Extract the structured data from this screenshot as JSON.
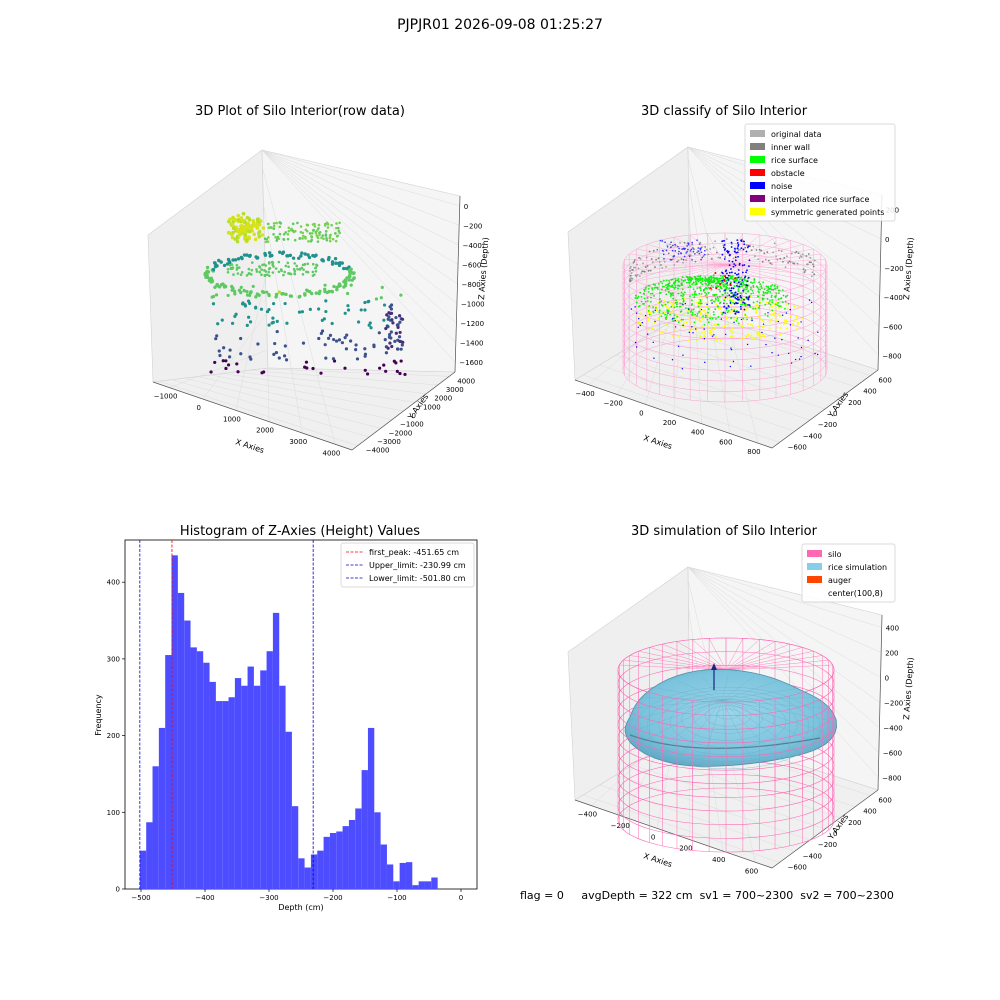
{
  "suptitle": "PJPJR01 2026-09-08 01:25:27",
  "status_line": {
    "flag": "flag = 0",
    "avg_depth": "avgDepth = 322 cm",
    "sv1": "sv1 = 700~2300",
    "sv2": "sv2 = 700~2300"
  },
  "colors": {
    "histogram_bar": "#4d4dff",
    "peak_line": "#ff0000",
    "limit_line": "#0000cc",
    "silo": "#ff69b4",
    "rice_simulation": "#87ceeb",
    "auger": "#ff4500",
    "original_data": "#b0b0b0",
    "inner_wall": "#808080",
    "rice_surface": "#00ff00",
    "obstacle": "#ff0000",
    "noise": "#0000ff",
    "interpolated_rice_surface": "#800080",
    "symmetric_generated_points": "#ffff00"
  },
  "chart_data": [
    {
      "type": "scatter3d",
      "title": "3D Plot of Silo Interior(row data)",
      "xlabel": "X Axies",
      "ylabel": "Y Axies",
      "zlabel": "Z Axies (Depth)",
      "xticks": [
        "−1000",
        "0",
        "1000",
        "2000",
        "3000",
        "4000"
      ],
      "yticks": [
        "−4000",
        "−3000",
        "−2000",
        "−1000",
        "0",
        "1000",
        "2000",
        "3000",
        "4000"
      ],
      "zticks": [
        "0",
        "−200",
        "−400",
        "−600",
        "−800",
        "−1000",
        "−1200",
        "−1400",
        "−1600"
      ],
      "xlim": [
        -1000,
        4500
      ],
      "ylim": [
        -4000,
        4000
      ],
      "zlim": [
        -1700,
        0
      ]
    },
    {
      "type": "scatter3d",
      "title": "3D classify of Silo Interior",
      "xlabel": "X Axies",
      "ylabel": "Y Axies",
      "zlabel": "Z Axies (Depth)",
      "xticks": [
        "−400",
        "−200",
        "0",
        "200",
        "400",
        "600",
        "800"
      ],
      "yticks": [
        "−600",
        "−400",
        "−200",
        "0",
        "200",
        "400",
        "600"
      ],
      "zticks": [
        "200",
        "0",
        "−200",
        "−400",
        "−600",
        "−800"
      ],
      "legend": [
        {
          "label": "original data",
          "color": "#b0b0b0"
        },
        {
          "label": "inner wall",
          "color": "#808080"
        },
        {
          "label": "rice surface",
          "color": "#00ff00"
        },
        {
          "label": "obstacle",
          "color": "#ff0000"
        },
        {
          "label": "noise",
          "color": "#0000ff"
        },
        {
          "label": "interpolated rice surface",
          "color": "#800080"
        },
        {
          "label": "symmetric generated points",
          "color": "#ffff00"
        }
      ],
      "legend_position": "top-right"
    },
    {
      "type": "bar",
      "title": "Histogram of Z-Axies (Height) Values",
      "xlabel": "Depth (cm)",
      "ylabel": "Frequency",
      "xlim": [
        -525,
        25
      ],
      "ylim": [
        0,
        455
      ],
      "xticks": [
        -500,
        -400,
        -300,
        -200,
        -100,
        0
      ],
      "yticks": [
        0,
        100,
        200,
        300,
        400
      ],
      "bin_edges_start": -501.8,
      "bin_width": 9.9,
      "values": [
        50,
        87,
        160,
        210,
        305,
        435,
        386,
        350,
        315,
        310,
        295,
        270,
        245,
        245,
        250,
        275,
        265,
        290,
        265,
        285,
        310,
        360,
        265,
        205,
        108,
        40,
        28,
        45,
        50,
        68,
        73,
        75,
        82,
        90,
        105,
        155,
        210,
        100,
        58,
        32,
        10,
        34,
        35,
        5,
        10,
        10,
        15
      ],
      "vlines": [
        {
          "label": "first_peak: -451.65 cm",
          "x": -451.65,
          "color": "#ff0000"
        },
        {
          "label": "Upper_limit: -230.99 cm",
          "x": -230.99,
          "color": "#0000cc"
        },
        {
          "label": "Lower_limit: -501.80 cm",
          "x": -501.8,
          "color": "#0000cc"
        }
      ],
      "legend_position": "top-right"
    },
    {
      "type": "surface3d",
      "title": "3D simulation of Silo Interior",
      "xlabel": "X Axies",
      "ylabel": "Y Axies",
      "zlabel": "Z Axies (Depth)",
      "xticks": [
        "−400",
        "−200",
        "0",
        "200",
        "400",
        "600"
      ],
      "yticks": [
        "−600",
        "−400",
        "−200",
        "0",
        "200",
        "400",
        "600"
      ],
      "zticks": [
        "400",
        "200",
        "0",
        "−200",
        "−400",
        "−600",
        "−800"
      ],
      "legend": [
        {
          "label": "silo",
          "color": "#ff69b4"
        },
        {
          "label": "rice simulation",
          "color": "#87ceeb"
        },
        {
          "label": "auger",
          "color": "#ff4500"
        },
        {
          "label": "center(100,8)",
          "color": ""
        }
      ],
      "legend_position": "top-right"
    }
  ]
}
